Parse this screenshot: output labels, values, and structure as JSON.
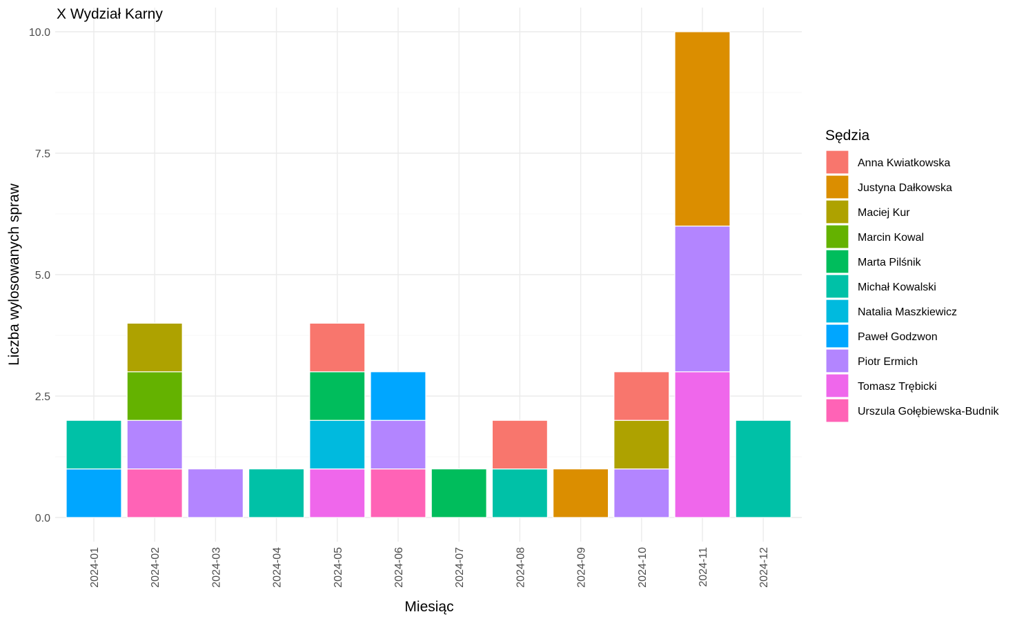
{
  "chart_data": {
    "type": "bar",
    "stacked": true,
    "title": "X Wydział Karny",
    "xlabel": "Miesiąc",
    "ylabel": "Liczba wylosowanych spraw",
    "ylim": [
      0,
      10
    ],
    "y_ticks": [
      "0.0",
      "2.5",
      "5.0",
      "7.5",
      "10.0"
    ],
    "grid": true,
    "legend_position": "right",
    "legend_title": "Sędzia",
    "categories": [
      "2024-01",
      "2024-02",
      "2024-03",
      "2024-04",
      "2024-05",
      "2024-06",
      "2024-07",
      "2024-08",
      "2024-09",
      "2024-10",
      "2024-11",
      "2024-12"
    ],
    "series": [
      {
        "name": "Anna Kwiatkowska",
        "color": "#F8766D",
        "values": [
          0,
          0,
          0,
          0,
          1,
          0,
          0,
          1,
          0,
          1,
          0,
          0
        ]
      },
      {
        "name": "Justyna Dałkowska",
        "color": "#DB8E00",
        "values": [
          0,
          0,
          0,
          0,
          0,
          0,
          0,
          0,
          1,
          0,
          4,
          0
        ]
      },
      {
        "name": "Maciej Kur",
        "color": "#AEA200",
        "values": [
          0,
          1,
          0,
          0,
          0,
          0,
          0,
          0,
          0,
          1,
          0,
          0
        ]
      },
      {
        "name": "Marcin Kowal",
        "color": "#64B200",
        "values": [
          0,
          1,
          0,
          0,
          0,
          0,
          0,
          0,
          0,
          0,
          0,
          0
        ]
      },
      {
        "name": "Marta Pilśnik",
        "color": "#00BD5C",
        "values": [
          0,
          0,
          0,
          0,
          1,
          0,
          1,
          0,
          0,
          0,
          0,
          0
        ]
      },
      {
        "name": "Michał Kowalski",
        "color": "#00C1A7",
        "values": [
          1,
          0,
          0,
          1,
          0,
          0,
          0,
          1,
          0,
          0,
          0,
          2
        ]
      },
      {
        "name": "Natalia Maszkiewicz",
        "color": "#00BADE",
        "values": [
          0,
          0,
          0,
          0,
          1,
          0,
          0,
          0,
          0,
          0,
          0,
          0
        ]
      },
      {
        "name": "Paweł Godzwon",
        "color": "#00A6FF",
        "values": [
          1,
          0,
          0,
          0,
          0,
          1,
          0,
          0,
          0,
          0,
          0,
          0
        ]
      },
      {
        "name": "Piotr Ermich",
        "color": "#B385FF",
        "values": [
          0,
          1,
          1,
          0,
          0,
          1,
          0,
          0,
          0,
          1,
          3,
          0
        ]
      },
      {
        "name": "Tomasz Trębicki",
        "color": "#EF67EB",
        "values": [
          0,
          0,
          0,
          0,
          1,
          0,
          0,
          0,
          0,
          0,
          3,
          0
        ]
      },
      {
        "name": "Urszula Gołębiewska-Budnik",
        "color": "#FF63B6",
        "values": [
          0,
          1,
          0,
          0,
          0,
          1,
          0,
          0,
          0,
          0,
          0,
          0
        ]
      }
    ]
  }
}
